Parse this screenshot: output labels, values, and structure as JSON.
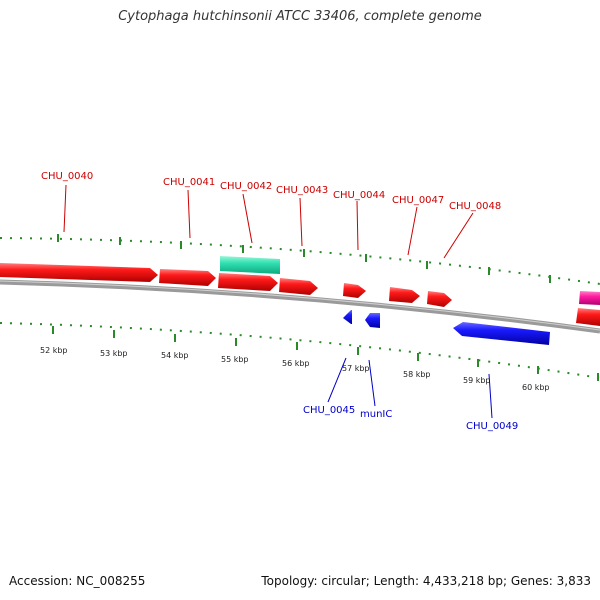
{
  "title": "Cytophaga hutchinsonii ATCC 33406, complete genome",
  "footer": {
    "accession": "Accession: NC_008255",
    "summary": "Topology: circular; Length: 4,433,218 bp; Genes: 3,833"
  },
  "colors": {
    "forward_gene": "#ff0000",
    "reverse_gene": "#0000ff",
    "rna_gene": "#22ddaa",
    "other_gene": "#ff1493",
    "backbone": "#888888",
    "ticks": "#2a8a2a",
    "label_top": "#cc0000",
    "label_bottom": "#0000cc"
  },
  "scale_labels": [
    "52 kbp",
    "53 kbp",
    "54 kbp",
    "55 kbp",
    "56 kbp",
    "57 kbp",
    "58 kbp",
    "59 kbp",
    "60 kbp"
  ],
  "genes_top_labels": [
    "CHU_0040",
    "CHU_0041",
    "CHU_0042",
    "CHU_0043",
    "CHU_0044",
    "CHU_0047",
    "CHU_0048"
  ],
  "genes_bottom_labels": [
    "CHU_0045",
    "munIC",
    "CHU_0049"
  ]
}
